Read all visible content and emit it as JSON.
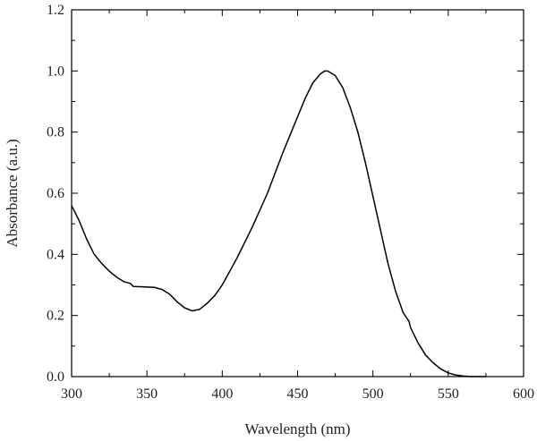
{
  "chart_data": {
    "type": "line",
    "title": "",
    "xlabel": "Wavelength (nm)",
    "ylabel": "Absorbance (a.u.)",
    "xlim": [
      300,
      600
    ],
    "ylim": [
      0,
      1.2
    ],
    "x_ticks": [
      300,
      350,
      400,
      450,
      500,
      550,
      600
    ],
    "x_tick_labels": [
      "300",
      "350",
      "400",
      "450",
      "500",
      "550",
      "600"
    ],
    "y_ticks": [
      0.0,
      0.2,
      0.4,
      0.6,
      0.8,
      1.0,
      1.2
    ],
    "y_tick_labels": [
      "0.0",
      "0.2",
      "0.4",
      "0.6",
      "0.8",
      "1.0",
      "1.2"
    ],
    "grid": false,
    "legend": "none",
    "line_color": "#000000",
    "series": [
      {
        "x": [
          300,
          305,
          310,
          315,
          320,
          325,
          330,
          335,
          339,
          341,
          345,
          350,
          355,
          360,
          365,
          370,
          375,
          380,
          385,
          390,
          395,
          400,
          410,
          420,
          430,
          440,
          450,
          455,
          460,
          465,
          468,
          470,
          475,
          480,
          485,
          490,
          495,
          500,
          505,
          510,
          515,
          520,
          524,
          525,
          530,
          535,
          540,
          545,
          550,
          555,
          560,
          565,
          570,
          575
        ],
        "y": [
          0.56,
          0.51,
          0.45,
          0.4,
          0.37,
          0.345,
          0.325,
          0.31,
          0.305,
          0.295,
          0.294,
          0.293,
          0.292,
          0.285,
          0.27,
          0.245,
          0.225,
          0.215,
          0.22,
          0.24,
          0.265,
          0.3,
          0.39,
          0.49,
          0.6,
          0.73,
          0.85,
          0.91,
          0.96,
          0.99,
          1.0,
          1.0,
          0.985,
          0.945,
          0.88,
          0.8,
          0.7,
          0.59,
          0.48,
          0.37,
          0.28,
          0.21,
          0.18,
          0.16,
          0.11,
          0.07,
          0.045,
          0.025,
          0.012,
          0.005,
          0.002,
          0.0,
          0.0,
          0.0
        ]
      }
    ]
  }
}
